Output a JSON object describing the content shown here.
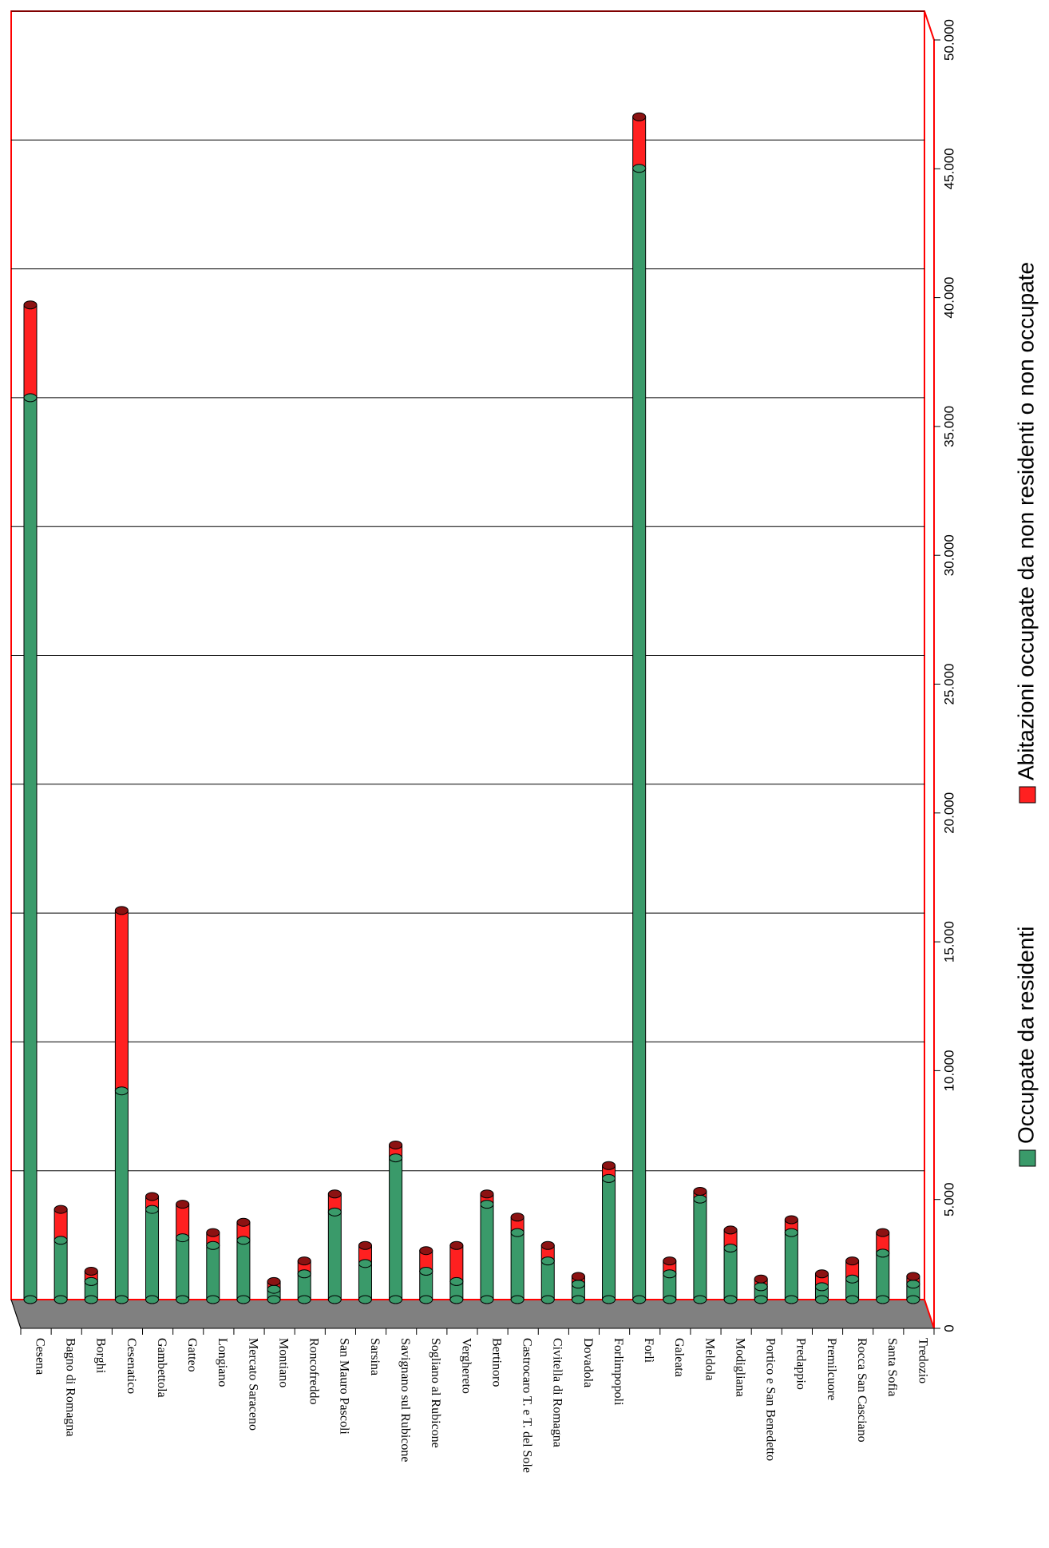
{
  "chart_data": {
    "type": "bar",
    "stacked": true,
    "orientation": "rotated-90",
    "categories": [
      "Cesena",
      "Bagno di Romagna",
      "Borghi",
      "Cesenatico",
      "Gambettola",
      "Gatteo",
      "Longiano",
      "Mercato Saraceno",
      "Montiano",
      "Roncofreddo",
      "San Mauro Pascoli",
      "Sarsina",
      "Savignano sul Rubicone",
      "Sogliano al Rubicone",
      "Verghereto",
      "Bertinoro",
      "Castrocaro T. e T. del Sole",
      "Civitella di Romagna",
      "Dovadola",
      "Forlimpopoli",
      "Forlì",
      "Galeata",
      "Meldola",
      "Modigliana",
      "Portico e San Benedetto",
      "Predappio",
      "Premilcuore",
      "Rocca San Casciano",
      "Santa Sofia",
      "Tredozio"
    ],
    "series": [
      {
        "name": "Occupate da residenti",
        "color": "#3a9a6a",
        "values": [
          35000,
          2300,
          700,
          8100,
          3500,
          2400,
          2100,
          2300,
          400,
          1000,
          3400,
          1400,
          5500,
          1100,
          700,
          3700,
          2600,
          1500,
          600,
          4700,
          43900,
          1000,
          3900,
          2000,
          500,
          2600,
          500,
          800,
          1800,
          600
        ]
      },
      {
        "name": "Abitazioni occupate da non residenti o non occupate",
        "color": "#ff2020",
        "values": [
          3600,
          1200,
          400,
          7000,
          500,
          1300,
          500,
          700,
          300,
          500,
          700,
          700,
          500,
          800,
          1400,
          400,
          600,
          600,
          300,
          500,
          2000,
          500,
          300,
          700,
          300,
          500,
          500,
          700,
          800,
          300
        ]
      }
    ],
    "ylim": [
      0,
      50000
    ],
    "yticks": [
      "0",
      "5.000",
      "10.000",
      "15.000",
      "20.000",
      "25.000",
      "30.000",
      "35.000",
      "40.000",
      "45.000",
      "50.000"
    ],
    "grid": true,
    "legend_position": "right",
    "colors": {
      "frame": "#ff0000",
      "floor": "#808080",
      "grid": "#000000"
    }
  }
}
